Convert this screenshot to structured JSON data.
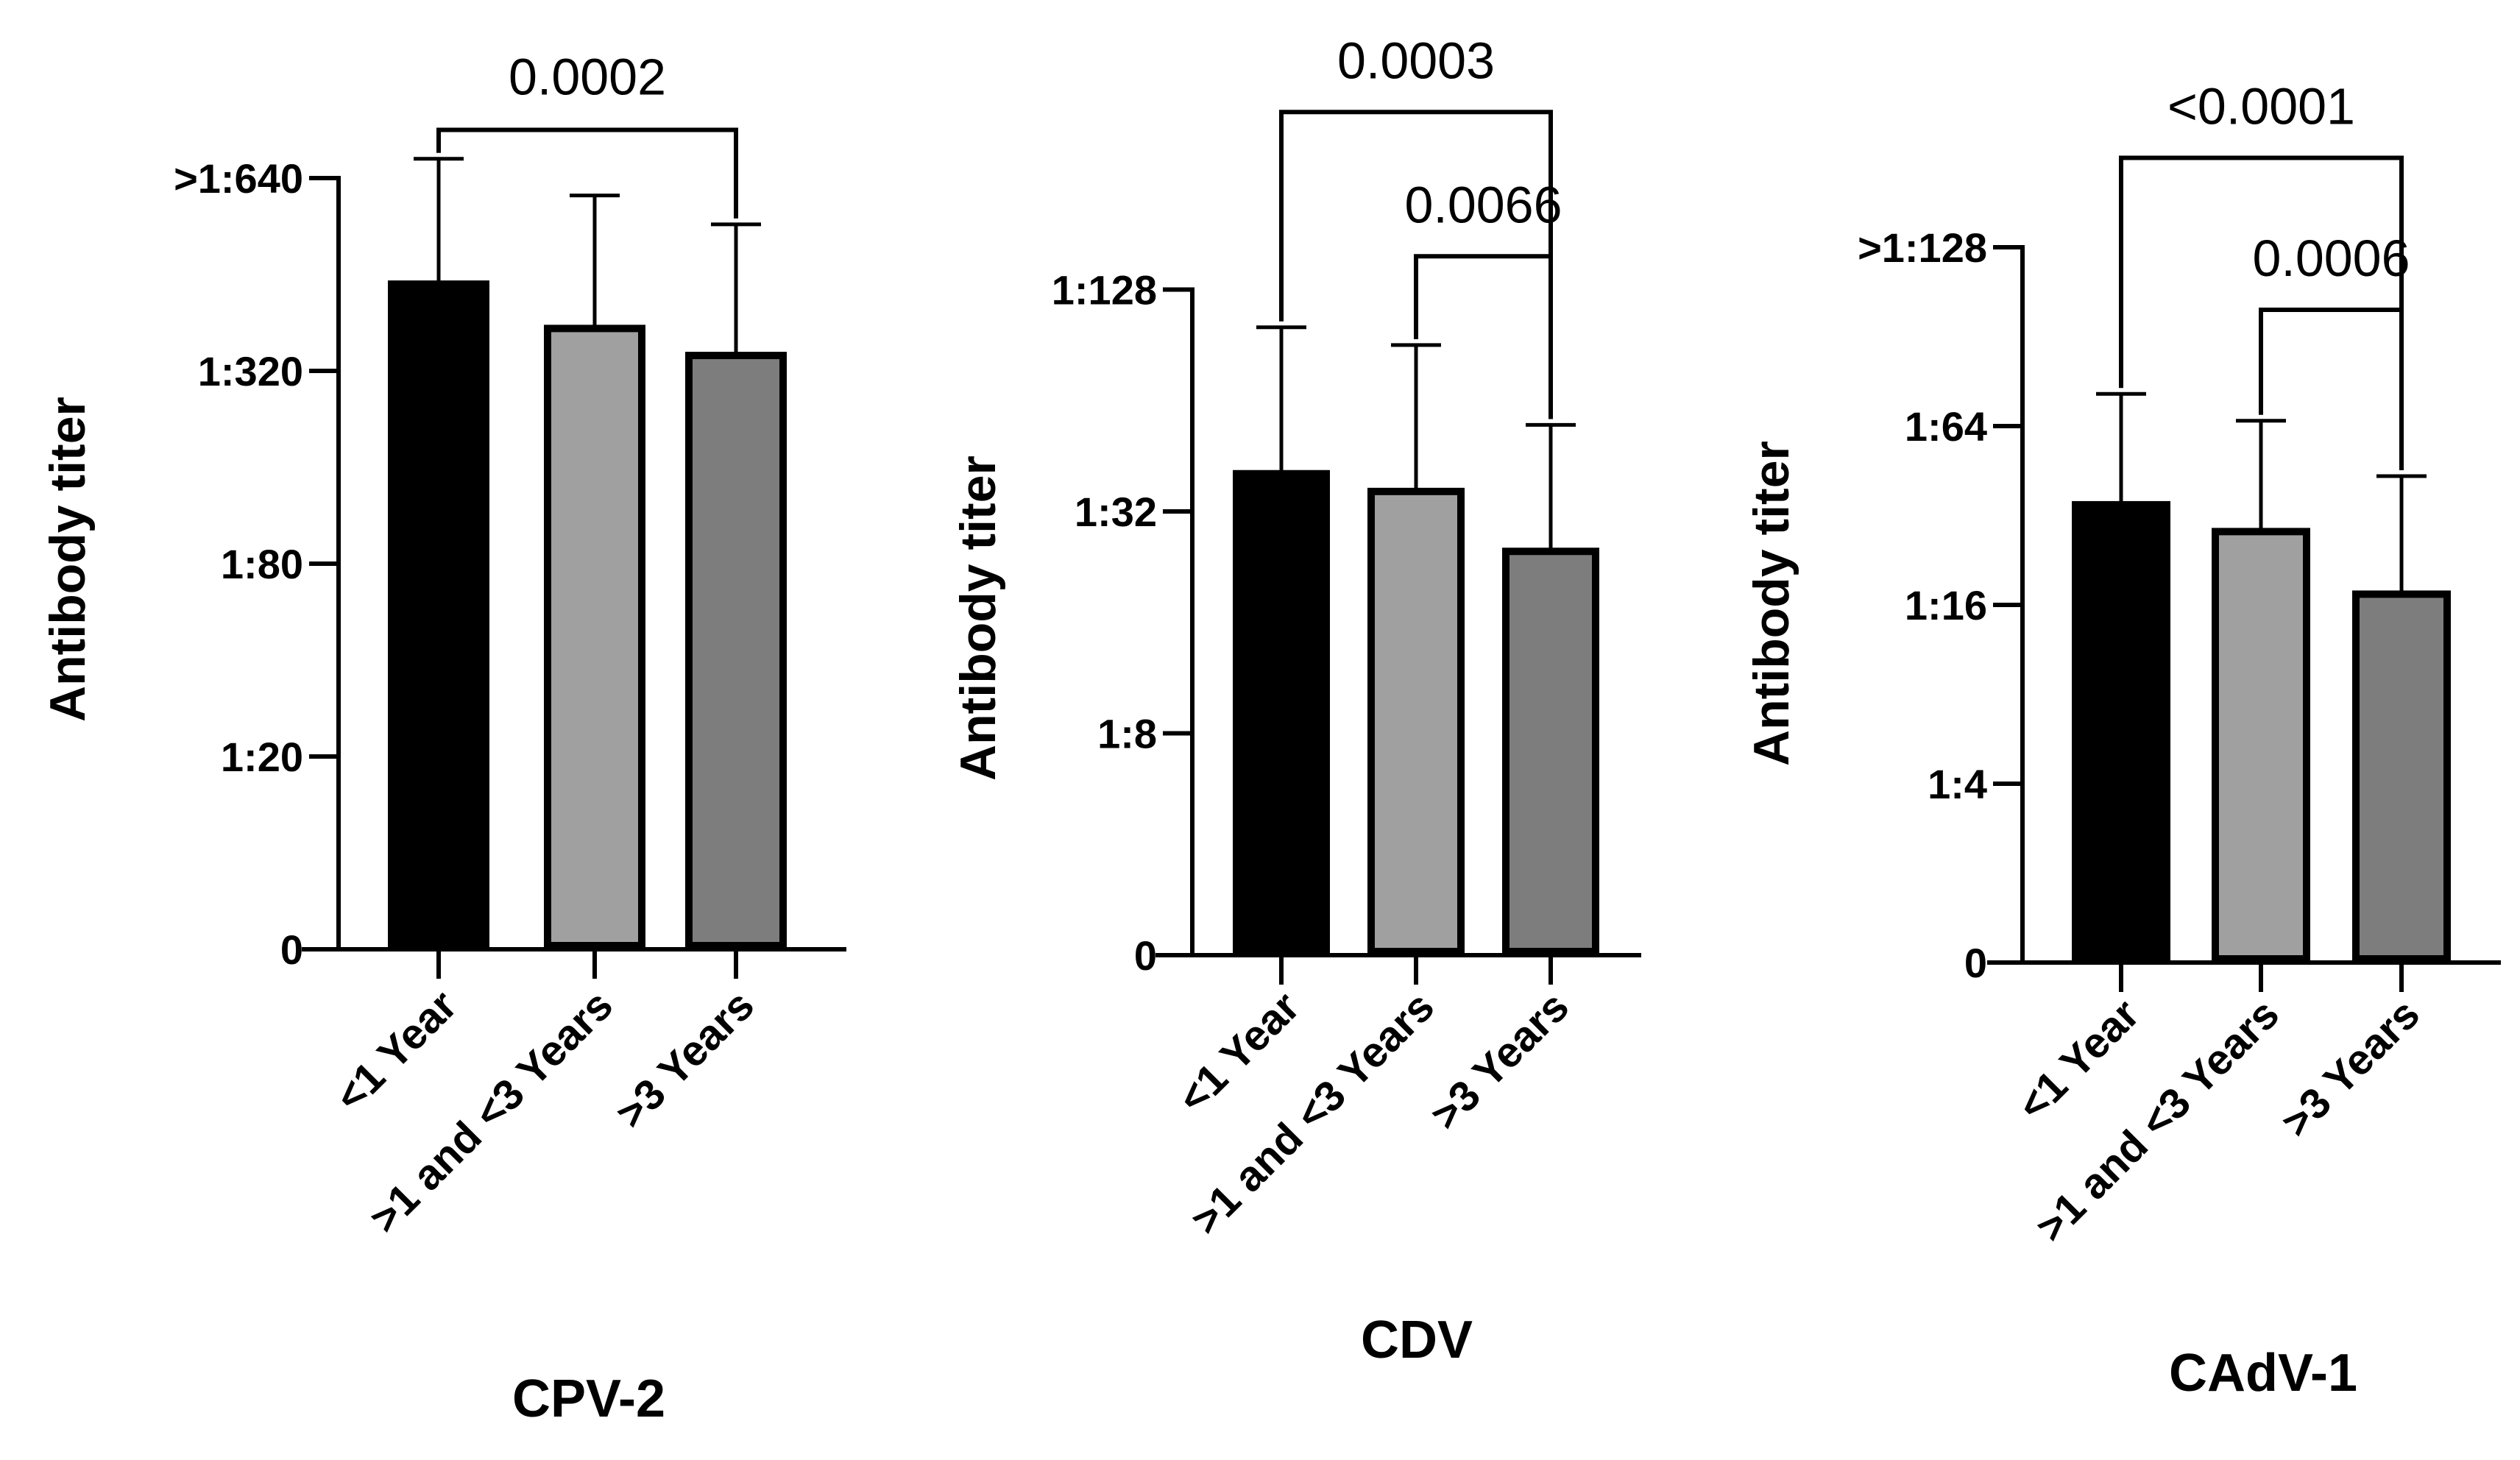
{
  "chart_data": [
    {
      "type": "bar",
      "title": "CPV-2",
      "ylabel": "Antibody titer",
      "xlabel": "",
      "categories": [
        "<1 Year",
        ">1 and <3 Years",
        ">3 Years"
      ],
      "y_ticks": [
        "0",
        "1:20",
        "1:80",
        "1:320",
        ">1:640"
      ],
      "values": [
        3.45,
        3.22,
        3.08
      ],
      "errors": [
        0.65,
        0.69,
        0.68
      ],
      "bar_colors": [
        "#000000",
        "#a0a0a0",
        "#7d7d7d"
      ],
      "significance": [
        {
          "from": 0,
          "to": 2,
          "label": "0.0002",
          "level": 4.25
        }
      ]
    },
    {
      "type": "bar",
      "title": "CDV",
      "ylabel": "Antibody titer",
      "xlabel": "",
      "categories": [
        "<1 Year",
        ">1 and <3 Years",
        ">3 Years"
      ],
      "y_ticks": [
        "0",
        "1:8",
        "1:32",
        "1:128"
      ],
      "values": [
        2.17,
        2.09,
        1.82
      ],
      "errors": [
        0.66,
        0.66,
        0.57
      ],
      "bar_colors": [
        "#000000",
        "#a0a0a0",
        "#7d7d7d"
      ],
      "significance": [
        {
          "from": 0,
          "to": 2,
          "label": "0.0003",
          "level": 3.8
        },
        {
          "from": 1,
          "to": 2,
          "label": "0.0066",
          "level": 3.15
        }
      ]
    },
    {
      "type": "bar",
      "title": "CAdV-1",
      "ylabel": "Antibody titer",
      "xlabel": "",
      "categories": [
        "<1 Year",
        ">1 and <3 Years",
        ">3 Years"
      ],
      "y_ticks": [
        "0",
        "1:4",
        "1:16",
        "1:64",
        ">1:128"
      ],
      "values": [
        2.56,
        2.41,
        2.06
      ],
      "errors": [
        0.62,
        0.62,
        0.66
      ],
      "bar_colors": [
        "#000000",
        "#a0a0a0",
        "#7d7d7d"
      ],
      "significance": [
        {
          "from": 0,
          "to": 2,
          "label": "<0.0001",
          "level": 4.5
        },
        {
          "from": 1,
          "to": 2,
          "label": "0.0006",
          "level": 3.65
        }
      ]
    }
  ]
}
